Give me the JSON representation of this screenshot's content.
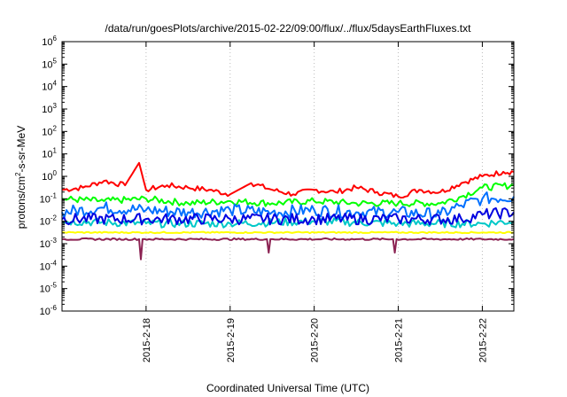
{
  "chart_data": {
    "type": "line",
    "title": "/data/run/goesPlots/archive/2015-02-22/09:00/flux/../flux/5daysEarthFluxes.txt",
    "xlabel": "Coordinated Universal Time (UTC)",
    "ylabel": "protons/cm2-s-sr-MeV",
    "yscale": "log",
    "ylim_exponents": [
      -6,
      6
    ],
    "y_ticks": [
      {
        "base": "10",
        "exp": "-6"
      },
      {
        "base": "10",
        "exp": "-5"
      },
      {
        "base": "10",
        "exp": "-4"
      },
      {
        "base": "10",
        "exp": "-3"
      },
      {
        "base": "10",
        "exp": "-2"
      },
      {
        "base": "10",
        "exp": "-1"
      },
      {
        "base": "10",
        "exp": "0"
      },
      {
        "base": "10",
        "exp": "1"
      },
      {
        "base": "10",
        "exp": "2"
      },
      {
        "base": "10",
        "exp": "3"
      },
      {
        "base": "10",
        "exp": "4"
      },
      {
        "base": "10",
        "exp": "5"
      },
      {
        "base": "10",
        "exp": "6"
      }
    ],
    "x_range_days": [
      "2015-02-17T00:00",
      "2015-02-22T09:00"
    ],
    "x_ticks": [
      "2015-2-18",
      "2015-2-19",
      "2015-2-20",
      "2015-2-21",
      "2015-2-22"
    ],
    "x_tick_dates": [
      "2015-02-18",
      "2015-02-19",
      "2015-02-20",
      "2015-02-21",
      "2015-02-22"
    ],
    "series_colors": [
      "#ff0000",
      "#00ff00",
      "#0070ff",
      "#00c8c8",
      "#0000e0",
      "#ffff00",
      "#8b2252"
    ],
    "series": [
      {
        "color": "#ff0000",
        "times": [
          "2015-02-17T00:00",
          "2015-02-17T06:00",
          "2015-02-17T12:00",
          "2015-02-17T18:00",
          "2015-02-17T22:00",
          "2015-02-18T00:00",
          "2015-02-18T06:00",
          "2015-02-18T12:00",
          "2015-02-18T18:00",
          "2015-02-19T00:00",
          "2015-02-19T06:00",
          "2015-02-19T12:00",
          "2015-02-19T18:00",
          "2015-02-20T00:00",
          "2015-02-20T06:00",
          "2015-02-20T12:00",
          "2015-02-20T18:00",
          "2015-02-21T00:00",
          "2015-02-21T06:00",
          "2015-02-21T12:00",
          "2015-02-21T18:00",
          "2015-02-22T00:00",
          "2015-02-22T06:00",
          "2015-02-22T09:00"
        ],
        "log10_values": [
          -0.6,
          -0.5,
          -0.2,
          -0.4,
          0.6,
          -0.6,
          -0.4,
          -0.5,
          -0.6,
          -0.8,
          -0.3,
          -0.6,
          -0.8,
          -0.6,
          -0.7,
          -0.5,
          -0.7,
          -0.9,
          -0.6,
          -0.7,
          -0.3,
          0.0,
          0.2,
          0.2
        ]
      },
      {
        "color": "#00ff00",
        "times": [
          "2015-02-17T00:00",
          "2015-02-17T12:00",
          "2015-02-18T00:00",
          "2015-02-18T12:00",
          "2015-02-19T00:00",
          "2015-02-19T12:00",
          "2015-02-20T00:00",
          "2015-02-20T12:00",
          "2015-02-21T00:00",
          "2015-02-21T12:00",
          "2015-02-21T18:00",
          "2015-02-22T00:00",
          "2015-02-22T09:00"
        ],
        "log10_values": [
          -1.0,
          -1.1,
          -1.0,
          -1.2,
          -1.1,
          -1.2,
          -1.1,
          -1.2,
          -1.2,
          -1.2,
          -0.9,
          -0.5,
          -0.4
        ]
      },
      {
        "color": "#0070ff",
        "times": [
          "2015-02-17T00:00",
          "2015-02-17T12:00",
          "2015-02-18T00:00",
          "2015-02-18T12:00",
          "2015-02-19T00:00",
          "2015-02-19T12:00",
          "2015-02-20T00:00",
          "2015-02-20T12:00",
          "2015-02-21T00:00",
          "2015-02-21T12:00",
          "2015-02-21T18:00",
          "2015-02-22T00:00",
          "2015-02-22T09:00"
        ],
        "log10_values": [
          -1.6,
          -1.4,
          -1.5,
          -1.6,
          -1.5,
          -1.6,
          -1.5,
          -1.6,
          -1.6,
          -1.7,
          -1.3,
          -1.0,
          -0.9
        ]
      },
      {
        "color": "#00c8c8",
        "times": [
          "2015-02-17T00:00",
          "2015-02-18T00:00",
          "2015-02-19T00:00",
          "2015-02-20T00:00",
          "2015-02-21T00:00",
          "2015-02-22T00:00",
          "2015-02-22T09:00"
        ],
        "log10_values": [
          -2.0,
          -2.1,
          -2.1,
          -2.0,
          -2.1,
          -2.1,
          -2.0
        ]
      },
      {
        "color": "#0000e0",
        "times": [
          "2015-02-17T00:00",
          "2015-02-18T00:00",
          "2015-02-19T00:00",
          "2015-02-20T00:00",
          "2015-02-21T00:00",
          "2015-02-21T18:00",
          "2015-02-22T00:00",
          "2015-02-22T09:00"
        ],
        "log10_values": [
          -1.9,
          -1.9,
          -1.9,
          -1.9,
          -1.9,
          -1.9,
          -1.7,
          -1.6
        ]
      },
      {
        "color": "#ffff00",
        "times": [
          "2015-02-17T00:00",
          "2015-02-18T00:00",
          "2015-02-19T00:00",
          "2015-02-20T00:00",
          "2015-02-21T00:00",
          "2015-02-22T00:00",
          "2015-02-22T09:00"
        ],
        "log10_values": [
          -2.5,
          -2.5,
          -2.5,
          -2.5,
          -2.5,
          -2.5,
          -2.5
        ]
      },
      {
        "color": "#8b2252",
        "times": [
          "2015-02-17T00:00",
          "2015-02-17T22:00",
          "2015-02-17T22:30",
          "2015-02-17T23:00",
          "2015-02-18T12:00",
          "2015-02-19T10:30",
          "2015-02-19T11:00",
          "2015-02-19T11:30",
          "2015-02-20T12:00",
          "2015-02-20T22:30",
          "2015-02-20T23:00",
          "2015-02-20T23:30",
          "2015-02-22T00:00",
          "2015-02-22T09:00"
        ],
        "log10_values": [
          -2.8,
          -2.8,
          -3.7,
          -2.8,
          -2.8,
          -2.8,
          -3.4,
          -2.8,
          -2.8,
          -2.8,
          -3.4,
          -2.8,
          -2.8,
          -2.8
        ]
      }
    ]
  }
}
